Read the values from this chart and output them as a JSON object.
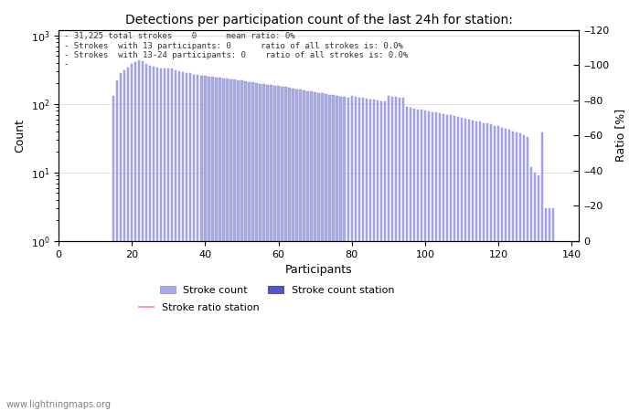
{
  "title": "Detections per participation count of the last 24h for station:",
  "xlabel": "Participants",
  "ylabel_left": "Count",
  "ylabel_right": "Ratio [%]",
  "annotation_lines": [
    "- 31,225 total strokes    0      mean ratio: 0%",
    "- Strokes  with 13 participants: 0      ratio of all strokes is: 0.0%",
    "- Strokes  with 13-24 participants: 0    ratio of all strokes is: 0.0%",
    "-"
  ],
  "bar_color_light": "#aaaaee",
  "bar_edge_color": "#8888cc",
  "watermark": "www.lightningmaps.org",
  "legend_items": [
    {
      "label": "Stroke count",
      "color": "#aaaaee"
    },
    {
      "label": "Stroke count station",
      "color": "#5555cc"
    },
    {
      "label": "Stroke ratio station",
      "color": "#ff99cc",
      "linestyle": "-"
    }
  ],
  "xlim": [
    0,
    142
  ],
  "ylim_log": [
    1.0,
    1200
  ],
  "ylim_right": [
    0,
    120
  ],
  "right_ticks": [
    0,
    20,
    40,
    60,
    80,
    100,
    120
  ],
  "bar_data": [
    [
      15,
      130
    ],
    [
      16,
      220
    ],
    [
      17,
      280
    ],
    [
      18,
      310
    ],
    [
      19,
      340
    ],
    [
      20,
      390
    ],
    [
      21,
      410
    ],
    [
      22,
      430
    ],
    [
      23,
      420
    ],
    [
      24,
      380
    ],
    [
      25,
      360
    ],
    [
      26,
      350
    ],
    [
      27,
      340
    ],
    [
      28,
      335
    ],
    [
      29,
      330
    ],
    [
      30,
      328
    ],
    [
      31,
      325
    ],
    [
      32,
      310
    ],
    [
      33,
      305
    ],
    [
      34,
      295
    ],
    [
      35,
      285
    ],
    [
      36,
      280
    ],
    [
      37,
      268
    ],
    [
      38,
      265
    ],
    [
      39,
      255
    ],
    [
      40,
      258
    ],
    [
      41,
      252
    ],
    [
      42,
      248
    ],
    [
      43,
      244
    ],
    [
      44,
      240
    ],
    [
      45,
      238
    ],
    [
      46,
      234
    ],
    [
      47,
      230
    ],
    [
      48,
      226
    ],
    [
      49,
      222
    ],
    [
      50,
      218
    ],
    [
      51,
      214
    ],
    [
      52,
      210
    ],
    [
      53,
      206
    ],
    [
      54,
      202
    ],
    [
      55,
      198
    ],
    [
      56,
      195
    ],
    [
      57,
      192
    ],
    [
      58,
      190
    ],
    [
      59,
      185
    ],
    [
      60,
      182
    ],
    [
      61,
      178
    ],
    [
      62,
      176
    ],
    [
      63,
      172
    ],
    [
      64,
      168
    ],
    [
      65,
      165
    ],
    [
      66,
      162
    ],
    [
      67,
      158
    ],
    [
      68,
      155
    ],
    [
      69,
      152
    ],
    [
      70,
      149
    ],
    [
      71,
      146
    ],
    [
      72,
      143
    ],
    [
      73,
      140
    ],
    [
      74,
      137
    ],
    [
      75,
      134
    ],
    [
      76,
      131
    ],
    [
      77,
      128
    ],
    [
      78,
      126
    ],
    [
      79,
      123
    ],
    [
      80,
      130
    ],
    [
      81,
      128
    ],
    [
      82,
      125
    ],
    [
      83,
      122
    ],
    [
      84,
      119
    ],
    [
      85,
      117
    ],
    [
      86,
      115
    ],
    [
      87,
      112
    ],
    [
      88,
      110
    ],
    [
      89,
      108
    ],
    [
      90,
      130
    ],
    [
      91,
      128
    ],
    [
      92,
      126
    ],
    [
      93,
      124
    ],
    [
      94,
      122
    ],
    [
      95,
      90
    ],
    [
      96,
      88
    ],
    [
      97,
      86
    ],
    [
      98,
      84
    ],
    [
      99,
      82
    ],
    [
      100,
      80
    ],
    [
      101,
      78
    ],
    [
      102,
      76
    ],
    [
      103,
      75
    ],
    [
      104,
      73
    ],
    [
      105,
      71
    ],
    [
      106,
      69
    ],
    [
      107,
      68
    ],
    [
      108,
      66
    ],
    [
      109,
      64
    ],
    [
      110,
      63
    ],
    [
      111,
      61
    ],
    [
      112,
      60
    ],
    [
      113,
      58
    ],
    [
      114,
      56
    ],
    [
      115,
      55
    ],
    [
      116,
      53
    ],
    [
      117,
      52
    ],
    [
      118,
      50
    ],
    [
      119,
      48
    ],
    [
      120,
      47
    ],
    [
      121,
      45
    ],
    [
      122,
      44
    ],
    [
      123,
      42
    ],
    [
      124,
      40
    ],
    [
      125,
      38
    ],
    [
      126,
      37
    ],
    [
      127,
      35
    ],
    [
      128,
      33
    ],
    [
      129,
      12
    ],
    [
      130,
      10
    ],
    [
      131,
      9
    ],
    [
      132,
      38
    ],
    [
      133,
      3
    ],
    [
      134,
      3
    ],
    [
      135,
      3
    ]
  ]
}
